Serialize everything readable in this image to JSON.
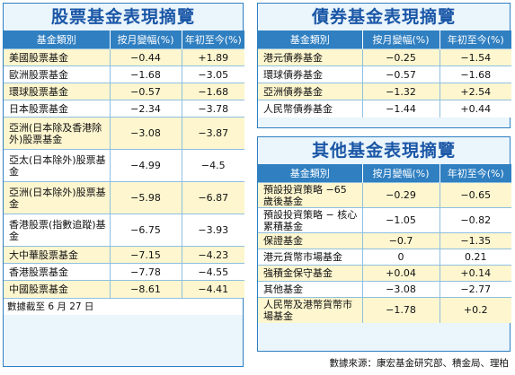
{
  "stock": {
    "title": "股票基金表現摘覽",
    "headers": [
      "基金類別",
      "按月變幅(%)",
      "年初至今(%)"
    ],
    "rows": [
      {
        "name": "美國股票基金",
        "month": "−0.44",
        "ytd": "+1.89"
      },
      {
        "name": "歐洲股票基金",
        "month": "−1.68",
        "ytd": "−3.05"
      },
      {
        "name": "環球股票基金",
        "month": "−0.57",
        "ytd": "−1.68"
      },
      {
        "name": "日本股票基金",
        "month": "−2.34",
        "ytd": "−3.78"
      },
      {
        "name": "亞洲(日本除及香港除外)股票基金",
        "month": "−3.08",
        "ytd": "−3.87"
      },
      {
        "name": "亞太(日本除外)股票基金",
        "month": "−4.99",
        "ytd": "−4.5"
      },
      {
        "name": "亞洲(日本除外)股票基金",
        "month": "−5.98",
        "ytd": "−6.87"
      },
      {
        "name": "香港股票(指數追蹤)基金",
        "month": "−6.75",
        "ytd": "−3.93"
      },
      {
        "name": "大中華股票基金",
        "month": "−7.15",
        "ytd": "−4.23"
      },
      {
        "name": "香港股票基金",
        "month": "−7.78",
        "ytd": "−4.55"
      },
      {
        "name": "中國股票基金",
        "month": "−8.61",
        "ytd": "−4.41"
      }
    ],
    "note": "數據截至 6 月 27 日"
  },
  "bond": {
    "title": "債券基金表現摘覽",
    "headers": [
      "基金類別",
      "按月變幅(%)",
      "年初至今(%)"
    ],
    "rows": [
      {
        "name": "港元債券基金",
        "month": "−0.25",
        "ytd": "−1.54"
      },
      {
        "name": "環球債券基金",
        "month": "−0.57",
        "ytd": "−1.68"
      },
      {
        "name": "亞洲債券基金",
        "month": "−1.32",
        "ytd": "+2.54"
      },
      {
        "name": "人民幣債券基金",
        "month": "−1.44",
        "ytd": "+0.44"
      }
    ]
  },
  "other": {
    "title": "其他基金表現摘覽",
    "headers": [
      "基金類別",
      "按月變幅(%)",
      "年初至今(%)"
    ],
    "rows": [
      {
        "name": "預設投資策略 −65 歲後基金",
        "month": "−0.29",
        "ytd": "−0.65"
      },
      {
        "name": "預設投資策略 − 核心累積基金",
        "month": "−1.05",
        "ytd": "−0.82"
      },
      {
        "name": "保證基金",
        "month": "−0.7",
        "ytd": "−1.35"
      },
      {
        "name": "港元貨幣市場基金",
        "month": "0",
        "ytd": "0.21"
      },
      {
        "name": "強積金保守基金",
        "month": "+0.04",
        "ytd": "+0.14"
      },
      {
        "name": "其他基金",
        "month": "−3.08",
        "ytd": "−2.77"
      },
      {
        "name": "人民幣及港幣貨幣市場基金",
        "month": "−1.78",
        "ytd": "+0.2"
      }
    ]
  },
  "source": "數據來源：康宏基金研究部、積金局、理柏"
}
